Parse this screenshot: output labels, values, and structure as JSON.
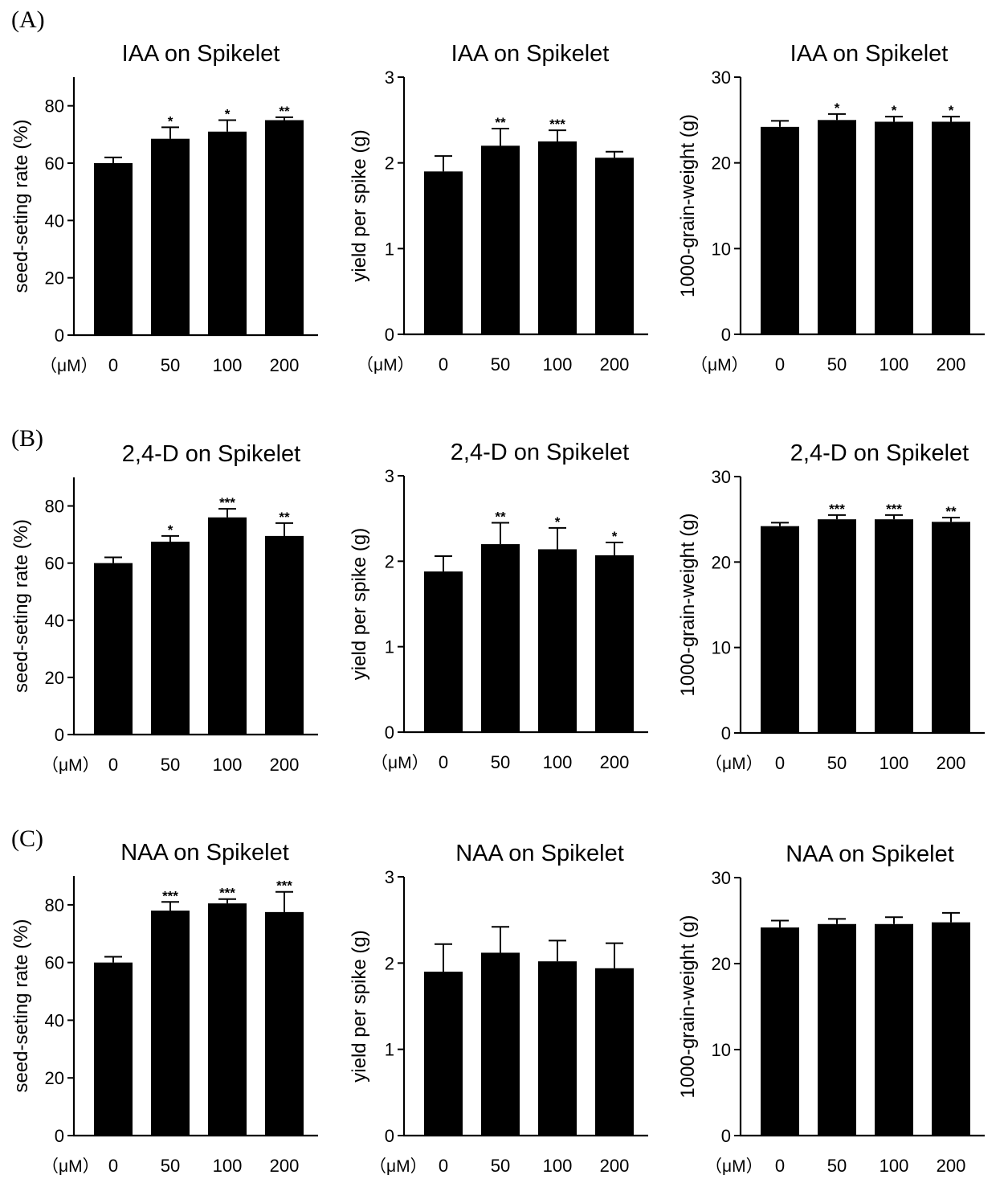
{
  "panel_labels": [
    "(A)",
    "(B)",
    "(C)"
  ],
  "chart_data": [
    {
      "type": "bar",
      "panel": "(A)",
      "title": "IAA on Spikelet",
      "ylabel": "seed-seting rate (%)",
      "xunit": "（μM）",
      "categories": [
        "0",
        "50",
        "100",
        "200"
      ],
      "ylim": [
        0,
        90
      ],
      "yticks": [
        "0",
        "20",
        "40",
        "60",
        "80"
      ],
      "values": [
        60,
        68.5,
        71,
        75
      ],
      "errors": [
        2,
        4,
        4,
        1
      ],
      "significance": [
        "",
        "*",
        "*",
        "**"
      ]
    },
    {
      "type": "bar",
      "panel": "(A)",
      "title": "IAA on Spikelet",
      "ylabel": "yield per spike (g)",
      "xunit": "（μM）",
      "categories": [
        "0",
        "50",
        "100",
        "200"
      ],
      "ylim": [
        0,
        3
      ],
      "yticks": [
        "0",
        "1",
        "2",
        "3"
      ],
      "values": [
        1.9,
        2.2,
        2.25,
        2.06
      ],
      "errors": [
        0.18,
        0.2,
        0.13,
        0.07
      ],
      "significance": [
        "",
        "**",
        "***",
        ""
      ]
    },
    {
      "type": "bar",
      "panel": "(A)",
      "title": "IAA on Spikelet",
      "ylabel": "1000-grain-weight (g)",
      "xunit": "（μM）",
      "categories": [
        "0",
        "50",
        "100",
        "200"
      ],
      "ylim": [
        0,
        30
      ],
      "yticks": [
        "0",
        "10",
        "20",
        "30"
      ],
      "values": [
        24.2,
        25,
        24.8,
        24.8
      ],
      "errors": [
        0.7,
        0.7,
        0.6,
        0.6
      ],
      "significance": [
        "",
        "*",
        "*",
        "*"
      ]
    },
    {
      "type": "bar",
      "panel": "(B)",
      "title": "2,4-D on Spikelet",
      "ylabel": "seed-seting rate (%)",
      "xunit": "（μM）",
      "categories": [
        "0",
        "50",
        "100",
        "200"
      ],
      "ylim": [
        0,
        90
      ],
      "yticks": [
        "0",
        "20",
        "40",
        "60",
        "80"
      ],
      "values": [
        60,
        67.5,
        76,
        69.5
      ],
      "errors": [
        2,
        2,
        3,
        4.5
      ],
      "significance": [
        "",
        "*",
        "***",
        "**"
      ]
    },
    {
      "type": "bar",
      "panel": "(B)",
      "title": "2,4-D on Spikelet",
      "ylabel": "yield per spike (g)",
      "xunit": "（μM）",
      "categories": [
        "0",
        "50",
        "100",
        "200"
      ],
      "ylim": [
        0,
        3
      ],
      "yticks": [
        "0",
        "1",
        "2",
        "3"
      ],
      "values": [
        1.88,
        2.2,
        2.14,
        2.07
      ],
      "errors": [
        0.18,
        0.25,
        0.25,
        0.15
      ],
      "significance": [
        "",
        "**",
        "*",
        "*"
      ]
    },
    {
      "type": "bar",
      "panel": "(B)",
      "title": "2,4-D on Spikelet",
      "ylabel": "1000-grain-weight (g)",
      "xunit": "（μM）",
      "categories": [
        "0",
        "50",
        "100",
        "200"
      ],
      "ylim": [
        0,
        30
      ],
      "yticks": [
        "0",
        "10",
        "20",
        "30"
      ],
      "values": [
        24.2,
        25,
        25,
        24.7
      ],
      "errors": [
        0.4,
        0.5,
        0.5,
        0.5
      ],
      "significance": [
        "",
        "***",
        "***",
        "**"
      ]
    },
    {
      "type": "bar",
      "panel": "(C)",
      "title": "NAA on Spikelet",
      "ylabel": "seed-seting rate (%)",
      "xunit": "（μM）",
      "categories": [
        "0",
        "50",
        "100",
        "200"
      ],
      "ylim": [
        0,
        90
      ],
      "yticks": [
        "0",
        "20",
        "40",
        "60",
        "80"
      ],
      "values": [
        60,
        78,
        80.5,
        77.5
      ],
      "errors": [
        2,
        3,
        1.5,
        7
      ],
      "significance": [
        "",
        "***",
        "***",
        "***"
      ]
    },
    {
      "type": "bar",
      "panel": "(C)",
      "title": "NAA on Spikelet",
      "ylabel": "yield per spike (g)",
      "xunit": "（μM）",
      "categories": [
        "0",
        "50",
        "100",
        "200"
      ],
      "ylim": [
        0,
        3
      ],
      "yticks": [
        "0",
        "1",
        "2",
        "3"
      ],
      "values": [
        1.9,
        2.12,
        2.02,
        1.94
      ],
      "errors": [
        0.32,
        0.3,
        0.24,
        0.29
      ],
      "significance": [
        "",
        "",
        "",
        ""
      ]
    },
    {
      "type": "bar",
      "panel": "(C)",
      "title": "NAA on Spikelet",
      "ylabel": "1000-grain-weight (g)",
      "xunit": "（μM）",
      "categories": [
        "0",
        "50",
        "100",
        "200"
      ],
      "ylim": [
        0,
        30
      ],
      "yticks": [
        "0",
        "10",
        "20",
        "30"
      ],
      "values": [
        24.2,
        24.6,
        24.6,
        24.8
      ],
      "errors": [
        0.8,
        0.6,
        0.8,
        1.1
      ],
      "significance": [
        "",
        "",
        "",
        ""
      ]
    }
  ]
}
